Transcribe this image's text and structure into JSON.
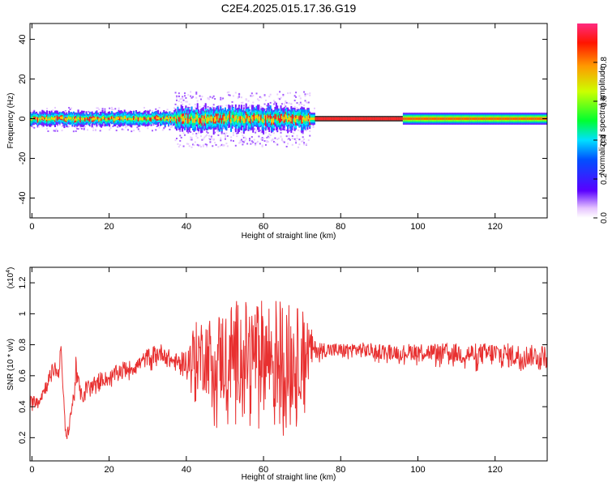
{
  "title": "C2E4.2025.015.17.36.G19",
  "chart_data": [
    {
      "type": "heatmap",
      "xlabel": "Height of straight line (km)",
      "ylabel": "Frequency (Hz)",
      "xlim": [
        -0.5,
        133.5
      ],
      "ylim": [
        -50,
        48
      ],
      "x_ticks": [
        0,
        20,
        40,
        60,
        80,
        100,
        120
      ],
      "y_ticks": [
        -40,
        -20,
        0,
        20,
        40
      ],
      "colorbar": {
        "label": "Normalized spectral amplitude",
        "range": [
          0.0,
          1.0
        ],
        "ticks": [
          0.0,
          0.2,
          0.4,
          0.6,
          0.8
        ]
      },
      "bands": [
        {
          "x_range": [
            -0.5,
            72
          ],
          "center_hz": 0,
          "halfwidth_hz": 3,
          "scatter_halfwidth_hz": 6
        },
        {
          "x_range": [
            37,
            72
          ],
          "center_hz": 0,
          "halfwidth_hz": 5,
          "scatter_halfwidth_hz": 14
        },
        {
          "x_range": [
            73,
            96
          ],
          "center_hz": 0,
          "halfwidth_hz": 1,
          "peak_amplitude": 0.98
        },
        {
          "x_range": [
            96,
            133.5
          ],
          "center_hz": 0,
          "halfwidth_hz": 3,
          "peak_amplitude": 0.9
        }
      ]
    },
    {
      "type": "line",
      "xlabel": "Height of straight line (km)",
      "ylabel": "SNR (10 * v/v)",
      "y_multiplier": "(x10",
      "y_multiplier_exp": "4",
      "y_multiplier_close": ")",
      "xlim": [
        -0.5,
        133.5
      ],
      "ylim": [
        0.05,
        1.3
      ],
      "x_ticks": [
        0,
        20,
        40,
        60,
        80,
        100,
        120
      ],
      "y_ticks": [
        0.2,
        0.4,
        0.6,
        0.8,
        1.0,
        1.2
      ],
      "color": "#e83030",
      "series": [
        {
          "x": [
            0,
            2,
            4,
            5,
            6,
            7,
            7.5,
            8,
            9,
            10,
            11,
            11.5,
            12,
            13,
            14,
            16,
            18,
            20,
            22,
            24,
            26,
            28,
            30,
            32,
            34,
            36,
            38,
            40,
            42,
            44,
            46,
            48,
            50,
            52,
            54,
            56,
            58,
            60,
            62,
            64,
            66,
            68,
            70,
            72,
            73,
            76,
            80,
            84,
            88,
            92,
            96,
            100,
            104,
            108,
            112,
            116,
            120,
            124,
            128,
            133
          ],
          "y": [
            0.43,
            0.45,
            0.55,
            0.62,
            0.65,
            0.6,
            0.85,
            0.5,
            0.18,
            0.35,
            0.48,
            0.7,
            0.55,
            0.45,
            0.52,
            0.55,
            0.58,
            0.58,
            0.62,
            0.65,
            0.65,
            0.68,
            0.72,
            0.74,
            0.75,
            0.7,
            0.68,
            0.7,
            0.72,
            0.74,
            0.73,
            0.72,
            0.72,
            0.75,
            0.76,
            0.74,
            0.75,
            0.74,
            0.73,
            0.72,
            0.72,
            0.7,
            0.75,
            0.76,
            0.77,
            0.77,
            0.76,
            0.77,
            0.76,
            0.76,
            0.75,
            0.76,
            0.75,
            0.75,
            0.74,
            0.74,
            0.74,
            0.73,
            0.73,
            0.73
          ],
          "noise": [
            0.04,
            0.04,
            0.05,
            0.05,
            0.05,
            0.05,
            0.05,
            0.05,
            0.04,
            0.05,
            0.06,
            0.08,
            0.06,
            0.05,
            0.05,
            0.05,
            0.05,
            0.05,
            0.05,
            0.05,
            0.05,
            0.05,
            0.06,
            0.06,
            0.06,
            0.06,
            0.06,
            0.07,
            0.22,
            0.24,
            0.26,
            0.3,
            0.32,
            0.34,
            0.34,
            0.34,
            0.34,
            0.36,
            0.38,
            0.4,
            0.38,
            0.34,
            0.3,
            0.2,
            0.06,
            0.05,
            0.05,
            0.05,
            0.05,
            0.05,
            0.05,
            0.06,
            0.06,
            0.06,
            0.07,
            0.07,
            0.08,
            0.08,
            0.07,
            0.07
          ]
        }
      ]
    }
  ]
}
